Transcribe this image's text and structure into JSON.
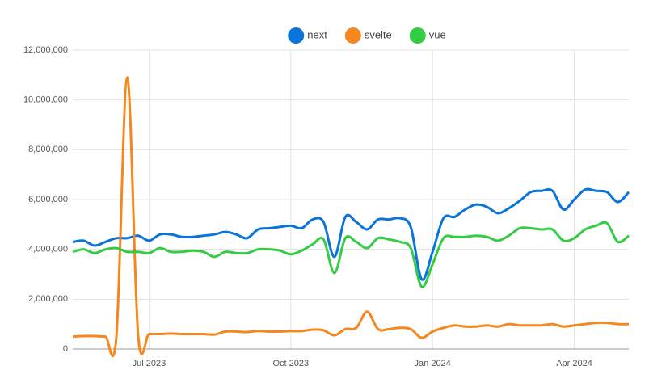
{
  "chart_data": {
    "type": "line",
    "categories": [
      null,
      null,
      null,
      null,
      null,
      null,
      null,
      "Jul 2023",
      null,
      null,
      null,
      null,
      null,
      null,
      null,
      null,
      null,
      null,
      null,
      null,
      "Oct 2023",
      null,
      null,
      null,
      null,
      null,
      null,
      null,
      null,
      null,
      null,
      null,
      null,
      "Jan 2024",
      null,
      null,
      null,
      null,
      null,
      null,
      null,
      null,
      null,
      null,
      null,
      null,
      "Apr 2024",
      null,
      null,
      null,
      null,
      null
    ],
    "series": [
      {
        "name": "next",
        "color": "#0a74da",
        "values": [
          4300000,
          4350000,
          4150000,
          4300000,
          4450000,
          4450000,
          4550000,
          4350000,
          4600000,
          4600000,
          4500000,
          4500000,
          4550000,
          4600000,
          4700000,
          4600000,
          4450000,
          4800000,
          4850000,
          4900000,
          4950000,
          4850000,
          5200000,
          5100000,
          3700000,
          5300000,
          5100000,
          4800000,
          5200000,
          5200000,
          5250000,
          4900000,
          2800000,
          3900000,
          5250000,
          5300000,
          5600000,
          5800000,
          5700000,
          5450000,
          5650000,
          5950000,
          6300000,
          6350000,
          6350000,
          5600000,
          6000000,
          6400000,
          6350000,
          6300000,
          5900000,
          6300000
        ]
      },
      {
        "name": "svelte",
        "color": "#f5871f",
        "values": [
          500000,
          520000,
          520000,
          500000,
          480000,
          10900000,
          550000,
          600000,
          600000,
          620000,
          600000,
          600000,
          600000,
          580000,
          700000,
          700000,
          680000,
          720000,
          700000,
          700000,
          720000,
          720000,
          780000,
          750000,
          550000,
          800000,
          850000,
          1500000,
          800000,
          800000,
          850000,
          800000,
          450000,
          700000,
          850000,
          950000,
          900000,
          900000,
          950000,
          900000,
          1000000,
          950000,
          950000,
          950000,
          1000000,
          900000,
          950000,
          1000000,
          1050000,
          1050000,
          1000000,
          1000000
        ]
      },
      {
        "name": "vue",
        "color": "#33cc44",
        "values": [
          3900000,
          4000000,
          3850000,
          4000000,
          4050000,
          3900000,
          3900000,
          3850000,
          4050000,
          3900000,
          3900000,
          3950000,
          3900000,
          3700000,
          3900000,
          3850000,
          3850000,
          4000000,
          4000000,
          3950000,
          3800000,
          3950000,
          4200000,
          4400000,
          3050000,
          4450000,
          4300000,
          4050000,
          4450000,
          4400000,
          4300000,
          4050000,
          2500000,
          3400000,
          4450000,
          4500000,
          4500000,
          4550000,
          4500000,
          4350000,
          4550000,
          4850000,
          4850000,
          4800000,
          4800000,
          4350000,
          4450000,
          4800000,
          4950000,
          5050000,
          4300000,
          4550000
        ]
      }
    ],
    "ylim": [
      0,
      12000000
    ],
    "yticks": [
      0,
      {
        "value": 2000000,
        "label": "2,000,000"
      },
      {
        "value": 4000000,
        "label": "4,000,000"
      },
      {
        "value": 6000000,
        "label": "6,000,000"
      },
      {
        "value": 8000000,
        "label": "8,000,000"
      },
      {
        "value": 10000000,
        "label": "10,000,000"
      },
      {
        "value": 12000000,
        "label": "12,000,000"
      }
    ],
    "grid": true
  }
}
